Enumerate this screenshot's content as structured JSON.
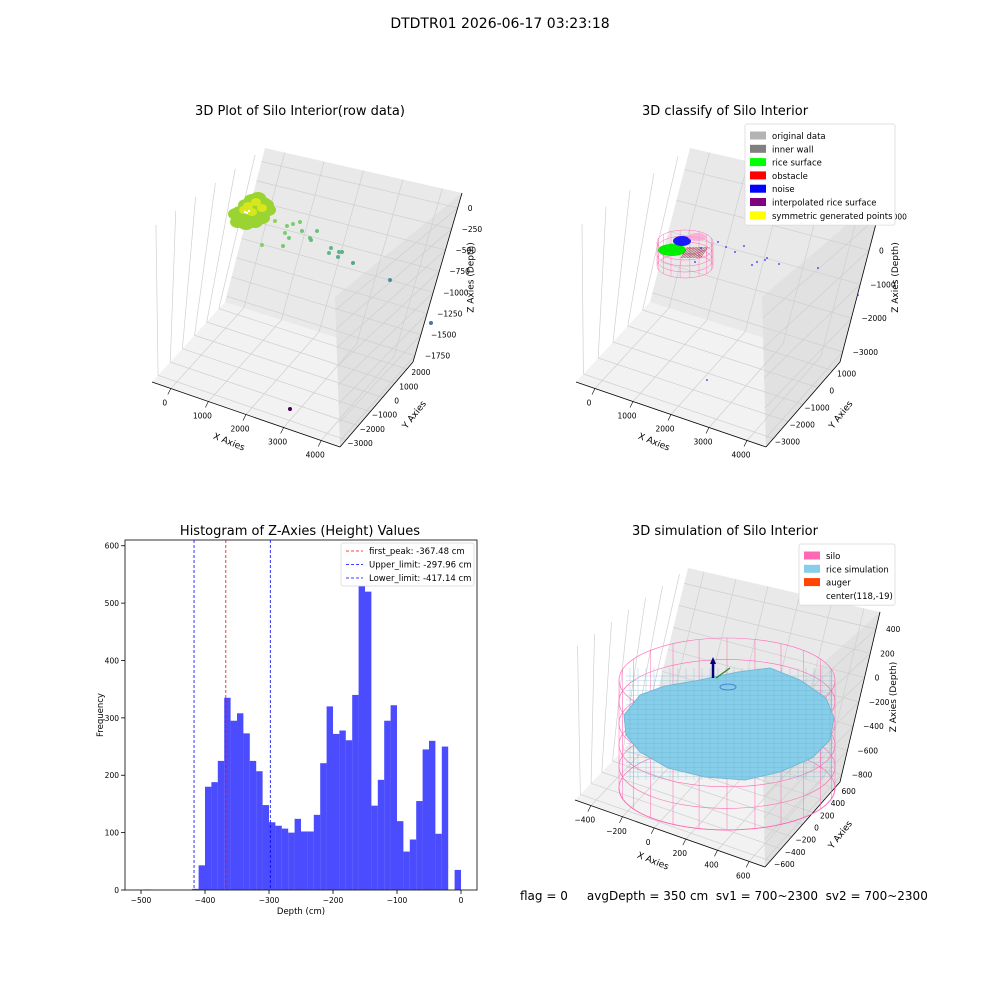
{
  "figure": {
    "suptitle": "DTDTR01 2026-06-17 03:23:18",
    "info_line": "flag = 0     avgDepth = 350 cm  sv1 = 700~2300  sv2 = 700~2300"
  },
  "chart_data": [
    {
      "type": "scatter",
      "title": "3D Plot of Silo Interior(row data)",
      "xlabel": "X Axies",
      "ylabel": "Y Axies",
      "zlabel": "Z Axies (Depth)",
      "xticks": [
        "0",
        "1000",
        "2000",
        "3000",
        "4000"
      ],
      "yticks": [
        "2000",
        "1000",
        "0",
        "−1000",
        "−2000",
        "−3000"
      ],
      "zticks": [
        "0",
        "−250",
        "−500",
        "−750",
        "−1000",
        "−1250",
        "−1500",
        "−1750"
      ],
      "grid": true
    },
    {
      "type": "scatter",
      "title": "3D classify of Silo Interior",
      "xlabel": "X Axies",
      "ylabel": "Y Axies",
      "zlabel": "Z Axies (Depth)",
      "xticks": [
        "0",
        "1000",
        "2000",
        "3000",
        "4000"
      ],
      "yticks": [
        "1000",
        "0",
        "−1000",
        "−2000",
        "−3000"
      ],
      "zticks": [
        "1000",
        "0",
        "−1000",
        "−2000",
        "−3000"
      ],
      "legend_position": "top-right",
      "legend": [
        {
          "label": "original data",
          "color": "#b3b3b3"
        },
        {
          "label": "inner wall",
          "color": "#808080"
        },
        {
          "label": "rice surface",
          "color": "#00ff00"
        },
        {
          "label": "obstacle",
          "color": "#ff0000"
        },
        {
          "label": "noise",
          "color": "#0000ff"
        },
        {
          "label": "interpolated rice surface",
          "color": "#800080"
        },
        {
          "label": "symmetric generated points",
          "color": "#ffff00"
        }
      ],
      "grid": true
    },
    {
      "type": "bar",
      "title": "Histogram of Z-Axies (Height) Values",
      "xlabel": "Depth (cm)",
      "ylabel": "Frequency",
      "xlim": [
        -525,
        25
      ],
      "ylim": [
        0,
        610
      ],
      "xticks": [
        -500,
        -400,
        -300,
        -200,
        -100,
        0
      ],
      "yticks": [
        0,
        100,
        200,
        300,
        400,
        500,
        600
      ],
      "bar_color": "#0000ff",
      "bar_alpha": 0.7,
      "bins": [
        {
          "x0": -495,
          "x1": -485,
          "count": 1
        },
        {
          "x0": -420,
          "x1": -410,
          "count": 2
        },
        {
          "x0": -410,
          "x1": -400,
          "count": 43
        },
        {
          "x0": -400,
          "x1": -390,
          "count": 180
        },
        {
          "x0": -390,
          "x1": -380,
          "count": 188
        },
        {
          "x0": -380,
          "x1": -370,
          "count": 225
        },
        {
          "x0": -370,
          "x1": -360,
          "count": 335
        },
        {
          "x0": -360,
          "x1": -350,
          "count": 295
        },
        {
          "x0": -350,
          "x1": -340,
          "count": 308
        },
        {
          "x0": -340,
          "x1": -330,
          "count": 273
        },
        {
          "x0": -330,
          "x1": -320,
          "count": 225
        },
        {
          "x0": -320,
          "x1": -310,
          "count": 207
        },
        {
          "x0": -310,
          "x1": -300,
          "count": 148
        },
        {
          "x0": -300,
          "x1": -290,
          "count": 118
        },
        {
          "x0": -290,
          "x1": -280,
          "count": 112
        },
        {
          "x0": -280,
          "x1": -270,
          "count": 107
        },
        {
          "x0": -270,
          "x1": -260,
          "count": 100
        },
        {
          "x0": -260,
          "x1": -250,
          "count": 124
        },
        {
          "x0": -250,
          "x1": -240,
          "count": 102
        },
        {
          "x0": -240,
          "x1": -230,
          "count": 102
        },
        {
          "x0": -230,
          "x1": -220,
          "count": 131
        },
        {
          "x0": -220,
          "x1": -210,
          "count": 221
        },
        {
          "x0": -210,
          "x1": -200,
          "count": 320
        },
        {
          "x0": -200,
          "x1": -190,
          "count": 272
        },
        {
          "x0": -190,
          "x1": -180,
          "count": 278
        },
        {
          "x0": -180,
          "x1": -170,
          "count": 261
        },
        {
          "x0": -170,
          "x1": -160,
          "count": 340
        },
        {
          "x0": -160,
          "x1": -150,
          "count": 575
        },
        {
          "x0": -150,
          "x1": -140,
          "count": 520
        },
        {
          "x0": -140,
          "x1": -130,
          "count": 147
        },
        {
          "x0": -130,
          "x1": -120,
          "count": 192
        },
        {
          "x0": -120,
          "x1": -110,
          "count": 295
        },
        {
          "x0": -110,
          "x1": -100,
          "count": 322
        },
        {
          "x0": -100,
          "x1": -90,
          "count": 120
        },
        {
          "x0": -90,
          "x1": -80,
          "count": 67
        },
        {
          "x0": -80,
          "x1": -70,
          "count": 88
        },
        {
          "x0": -70,
          "x1": -60,
          "count": 155
        },
        {
          "x0": -60,
          "x1": -50,
          "count": 245
        },
        {
          "x0": -50,
          "x1": -40,
          "count": 260
        },
        {
          "x0": -40,
          "x1": -30,
          "count": 98
        },
        {
          "x0": -30,
          "x1": -20,
          "count": 250
        },
        {
          "x0": -10,
          "x1": 0,
          "count": 35
        }
      ],
      "vlines": [
        {
          "x": -367.48,
          "color": "#ff0000",
          "label": "first_peak: -367.48 cm"
        },
        {
          "x": -297.96,
          "color": "#0000ff",
          "label": "Upper_limit: -297.96 cm"
        },
        {
          "x": -417.14,
          "color": "#0000ff",
          "label": "Lower_limit: -417.14 cm"
        }
      ],
      "legend_position": "top-right"
    },
    {
      "type": "surface",
      "title": "3D simulation of Silo Interior",
      "xlabel": "X Axies",
      "ylabel": "Y Axies",
      "zlabel": "Z Axies (Depth)",
      "xticks": [
        "−400",
        "−200",
        "0",
        "200",
        "400",
        "600"
      ],
      "yticks": [
        "600",
        "400",
        "200",
        "0",
        "−200",
        "−400",
        "−600"
      ],
      "zticks": [
        "400",
        "200",
        "0",
        "−200",
        "−400",
        "−600",
        "−800"
      ],
      "legend_position": "top-right",
      "legend": [
        {
          "label": "silo",
          "color": "#ff69b4"
        },
        {
          "label": "rice simulation",
          "color": "#87ceeb"
        },
        {
          "label": "auger",
          "color": "#ff4500"
        },
        {
          "label": "center(118,-19)",
          "color": ""
        }
      ],
      "grid": true
    }
  ]
}
